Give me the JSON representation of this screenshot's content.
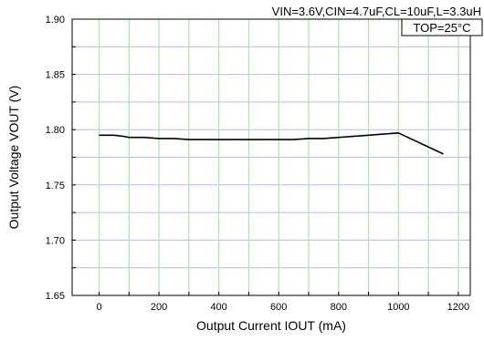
{
  "chart_data": {
    "type": "line",
    "title": "",
    "xlabel": "Output Current IOUT (mA)",
    "ylabel": "Output Voltage VOUT (V)",
    "xlim": [
      -90,
      1240
    ],
    "ylim": [
      1.65,
      1.9
    ],
    "x_ticks": [
      0,
      200,
      400,
      600,
      800,
      1000,
      1200
    ],
    "x_tick_labels": [
      "0",
      "200",
      "400",
      "600",
      "800",
      "1000",
      "1200"
    ],
    "y_ticks": [
      1.65,
      1.7,
      1.75,
      1.8,
      1.85,
      1.9
    ],
    "y_tick_labels": [
      "1.65",
      "1.70",
      "1.75",
      "1.80",
      "1.85",
      "1.90"
    ],
    "x_minor_step": 100,
    "y_minor_step": 0.025,
    "grid": true,
    "annotations": [
      "VIN=3.6V,CIN=4.7uF,CL=10uF,L=3.3uH",
      "TOP=25°C"
    ],
    "series": [
      {
        "x": [
          0,
          50,
          80,
          100,
          150,
          200,
          250,
          300,
          400,
          500,
          600,
          650,
          700,
          750,
          800,
          900,
          1000,
          1150
        ],
        "y": [
          1.795,
          1.795,
          1.794,
          1.793,
          1.793,
          1.792,
          1.792,
          1.791,
          1.791,
          1.791,
          1.791,
          1.791,
          1.792,
          1.792,
          1.793,
          1.795,
          1.797,
          1.778
        ]
      }
    ]
  },
  "colors": {
    "major_grid": "#a8e6a8",
    "minor_grid": "#b9b9ea",
    "line": "#000000"
  }
}
